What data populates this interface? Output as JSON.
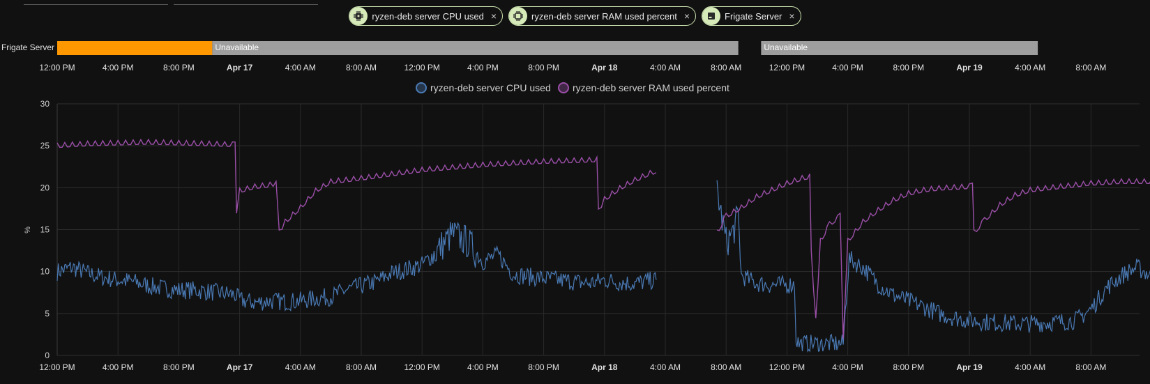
{
  "chips": [
    {
      "label": "ryzen-deb server CPU used",
      "icon": "cpu-chip-icon"
    },
    {
      "label": "ryzen-deb server RAM used percent",
      "icon": "memory-chip-icon"
    },
    {
      "label": "Frigate Server",
      "icon": "server-icon"
    }
  ],
  "chip_close": "×",
  "timeline": {
    "entity_label": "Frigate Server",
    "segments": [
      {
        "start": 0,
        "end": 10.2,
        "state": "",
        "color": "#ff9800"
      },
      {
        "start": 10.2,
        "end": 44.8,
        "state": "Unavailable",
        "color": "#9e9e9e"
      },
      {
        "start": 46.3,
        "end": 64.5,
        "state": "Unavailable",
        "color": "#9e9e9e"
      }
    ],
    "colors": {
      "on": "#ff9800",
      "unavailable": "#9e9e9e"
    }
  },
  "time_ticks": [
    {
      "t": 0,
      "label": "12:00 PM",
      "bold": false
    },
    {
      "t": 4,
      "label": "4:00 PM",
      "bold": false
    },
    {
      "t": 8,
      "label": "8:00 PM",
      "bold": false
    },
    {
      "t": 12,
      "label": "Apr 17",
      "bold": true
    },
    {
      "t": 16,
      "label": "4:00 AM",
      "bold": false
    },
    {
      "t": 20,
      "label": "8:00 AM",
      "bold": false
    },
    {
      "t": 24,
      "label": "12:00 PM",
      "bold": false
    },
    {
      "t": 28,
      "label": "4:00 PM",
      "bold": false
    },
    {
      "t": 32,
      "label": "8:00 PM",
      "bold": false
    },
    {
      "t": 36,
      "label": "Apr 18",
      "bold": true
    },
    {
      "t": 40,
      "label": "4:00 AM",
      "bold": false
    },
    {
      "t": 44,
      "label": "8:00 AM",
      "bold": false
    },
    {
      "t": 48,
      "label": "12:00 PM",
      "bold": false
    },
    {
      "t": 52,
      "label": "4:00 PM",
      "bold": false
    },
    {
      "t": 56,
      "label": "8:00 PM",
      "bold": false
    },
    {
      "t": 60,
      "label": "Apr 19",
      "bold": true
    },
    {
      "t": 64,
      "label": "4:00 AM",
      "bold": false
    },
    {
      "t": 68,
      "label": "8:00 AM",
      "bold": false
    }
  ],
  "chart_data": {
    "type": "line",
    "x_unit": "hours from Apr 16 12:00 PM",
    "xlim": [
      0,
      72.5
    ],
    "ylim": [
      0,
      30
    ],
    "yticks": [
      0,
      5,
      10,
      15,
      20,
      25,
      30
    ],
    "ylabel": "%",
    "grid": true,
    "legend_position": "top-center",
    "series": [
      {
        "name": "ryzen-deb server CPU used",
        "color": "#4a7ab5",
        "segments": [
          [
            [
              0,
              10
            ],
            [
              1,
              10.5
            ],
            [
              2,
              9.8
            ],
            [
              3,
              9.3
            ],
            [
              4,
              9.0
            ],
            [
              5,
              8.8
            ],
            [
              6,
              8.3
            ],
            [
              7,
              8.0
            ],
            [
              8,
              7.8
            ],
            [
              9,
              7.8
            ],
            [
              10,
              7.6
            ],
            [
              11,
              7.4
            ],
            [
              11.7,
              7.2
            ],
            [
              12,
              6.6
            ],
            [
              13,
              6.3
            ],
            [
              14,
              6.5
            ],
            [
              15,
              6.4
            ],
            [
              16,
              6.5
            ],
            [
              17,
              6.8
            ],
            [
              18,
              7.0
            ],
            [
              19,
              7.8
            ],
            [
              20,
              8.3
            ],
            [
              21,
              8.8
            ],
            [
              22,
              9.8
            ],
            [
              23,
              10.3
            ],
            [
              24,
              10.8
            ],
            [
              25,
              12.5
            ],
            [
              26,
              14.5
            ],
            [
              27,
              13.5
            ],
            [
              28,
              11.2
            ],
            [
              29,
              12.0
            ],
            [
              30,
              9.7
            ],
            [
              31,
              9.4
            ],
            [
              32,
              9.2
            ],
            [
              33,
              9.0
            ],
            [
              34,
              8.8
            ],
            [
              35,
              8.6
            ],
            [
              36,
              9.0
            ],
            [
              37,
              8.7
            ],
            [
              38,
              8.6
            ],
            [
              39,
              8.9
            ],
            [
              39.4,
              9.0
            ]
          ],
          [
            [
              43.4,
              20
            ],
            [
              43.6,
              17.5
            ],
            [
              44,
              13.5
            ],
            [
              44.4,
              14.5
            ],
            [
              44.8,
              16.5
            ],
            [
              45,
              9.5
            ],
            [
              46,
              8.6
            ],
            [
              47,
              8.4
            ],
            [
              48,
              8.4
            ],
            [
              48.5,
              8.5
            ],
            [
              48.6,
              2.0
            ],
            [
              48.8,
              1.4
            ],
            [
              50,
              1.4
            ],
            [
              51,
              1.4
            ],
            [
              51.7,
              1.4
            ],
            [
              51.9,
              7
            ],
            [
              52.1,
              11.5
            ],
            [
              53,
              10.5
            ],
            [
              54,
              8.5
            ],
            [
              55,
              7.2
            ],
            [
              56,
              6.5
            ],
            [
              57,
              5.8
            ],
            [
              58,
              5.0
            ],
            [
              59,
              4.5
            ],
            [
              60,
              4.2
            ],
            [
              61,
              4.0
            ],
            [
              62,
              3.9
            ],
            [
              63,
              3.8
            ],
            [
              64,
              3.8
            ],
            [
              65,
              3.9
            ],
            [
              66,
              4.0
            ],
            [
              67,
              4.2
            ],
            [
              68,
              5.5
            ],
            [
              69,
              8.0
            ],
            [
              70,
              9.5
            ],
            [
              71,
              10.5
            ],
            [
              72,
              9.5
            ],
            [
              72.4,
              9.0
            ]
          ]
        ]
      },
      {
        "name": "ryzen-deb server RAM used percent",
        "color": "#9b4fa8",
        "segments": [
          [
            [
              0,
              24.9
            ],
            [
              2,
              25.1
            ],
            [
              4,
              25.2
            ],
            [
              6,
              25.3
            ],
            [
              8,
              25.2
            ],
            [
              10,
              25.1
            ],
            [
              11.7,
              25.0
            ],
            [
              11.8,
              16.5
            ],
            [
              12,
              19.5
            ],
            [
              13,
              20.0
            ],
            [
              14,
              20.2
            ],
            [
              14.4,
              20.3
            ],
            [
              14.6,
              14.5
            ],
            [
              15,
              15.8
            ],
            [
              16,
              17.5
            ],
            [
              17,
              19.5
            ],
            [
              18,
              20.6
            ],
            [
              20,
              21.0
            ],
            [
              22,
              21.5
            ],
            [
              24,
              22.0
            ],
            [
              26,
              22.3
            ],
            [
              28,
              22.6
            ],
            [
              30,
              22.8
            ],
            [
              32,
              23.0
            ],
            [
              34,
              23.1
            ],
            [
              35.5,
              23.2
            ],
            [
              35.6,
              17.0
            ],
            [
              36,
              18.5
            ],
            [
              37,
              19.8
            ],
            [
              38,
              20.8
            ],
            [
              39,
              21.6
            ],
            [
              39.4,
              21.8
            ]
          ],
          [
            [
              43.4,
              14.5
            ],
            [
              44,
              16.5
            ],
            [
              45,
              17.5
            ],
            [
              46,
              18.8
            ],
            [
              47,
              19.6
            ],
            [
              48,
              20.4
            ],
            [
              49,
              21.0
            ],
            [
              49.5,
              21.2
            ],
            [
              49.6,
              12.0
            ],
            [
              49.9,
              4.0
            ],
            [
              50.2,
              13.5
            ],
            [
              50.8,
              15.5
            ],
            [
              51.5,
              16.5
            ],
            [
              51.7,
              1.5
            ],
            [
              52,
              13.5
            ],
            [
              53,
              15.8
            ],
            [
              54,
              17.2
            ],
            [
              55,
              18.4
            ],
            [
              56,
              19.2
            ],
            [
              57,
              19.6
            ],
            [
              58,
              19.8
            ],
            [
              59,
              19.9
            ],
            [
              60,
              20.0
            ],
            [
              60.2,
              20.1
            ],
            [
              60.3,
              14.5
            ],
            [
              61,
              16.0
            ],
            [
              62,
              17.8
            ],
            [
              63,
              19.0
            ],
            [
              64,
              19.6
            ],
            [
              66,
              20.0
            ],
            [
              68,
              20.4
            ],
            [
              70,
              20.6
            ],
            [
              72,
              20.6
            ],
            [
              72.4,
              20.6
            ]
          ]
        ]
      }
    ]
  }
}
